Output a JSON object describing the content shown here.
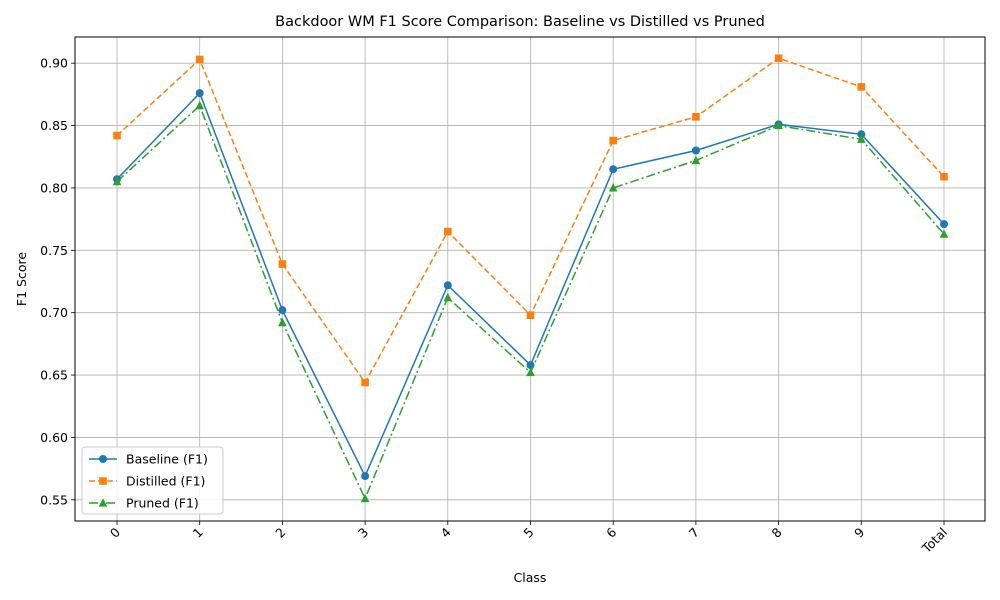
{
  "chart_data": {
    "type": "line",
    "title": "Backdoor WM F1 Score Comparison: Baseline vs Distilled vs Pruned",
    "xlabel": "Class",
    "ylabel": "F1 Score",
    "categories": [
      "0",
      "1",
      "2",
      "3",
      "4",
      "5",
      "6",
      "7",
      "8",
      "9",
      "Total"
    ],
    "ylim": [
      0.533,
      0.921
    ],
    "yticks": [
      "0.55",
      "0.60",
      "0.65",
      "0.70",
      "0.75",
      "0.80",
      "0.85",
      "0.90"
    ],
    "grid": true,
    "legend_position": "lower-left",
    "series": [
      {
        "name": "Baseline (F1)",
        "color": "#1f77b4",
        "marker": "circle",
        "linestyle": "solid",
        "values": [
          0.807,
          0.876,
          0.702,
          0.569,
          0.722,
          0.658,
          0.815,
          0.83,
          0.851,
          0.843,
          0.771
        ]
      },
      {
        "name": "Distilled (F1)",
        "color": "#ff7f0e",
        "marker": "square",
        "linestyle": "dashed",
        "values": [
          0.842,
          0.903,
          0.739,
          0.644,
          0.765,
          0.698,
          0.838,
          0.857,
          0.904,
          0.881,
          0.809
        ]
      },
      {
        "name": "Pruned (F1)",
        "color": "#2ca02c",
        "marker": "triangle",
        "linestyle": "dashdot",
        "values": [
          0.805,
          0.866,
          0.692,
          0.551,
          0.712,
          0.652,
          0.8,
          0.822,
          0.85,
          0.839,
          0.763
        ]
      }
    ]
  }
}
